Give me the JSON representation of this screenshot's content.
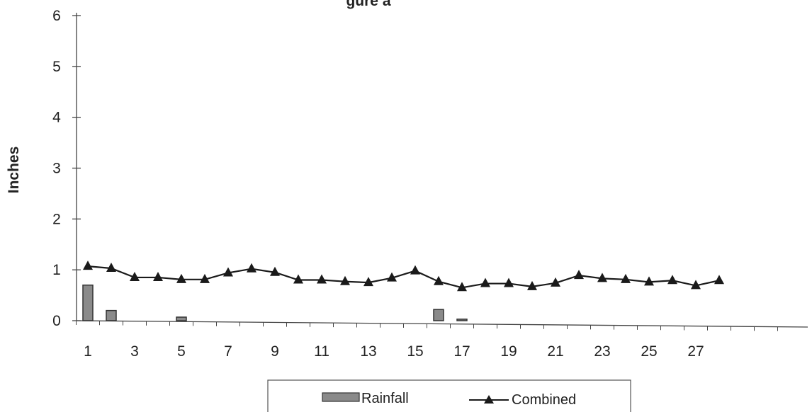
{
  "chart_data": {
    "type": "bar",
    "title": "gure a",
    "xlabel": "",
    "ylabel": "Inches",
    "ylim": [
      0,
      6
    ],
    "yticks": [
      0,
      1,
      2,
      3,
      4,
      5,
      6
    ],
    "x": [
      1,
      2,
      3,
      4,
      5,
      6,
      7,
      8,
      9,
      10,
      11,
      12,
      13,
      14,
      15,
      16,
      17,
      18,
      19,
      20,
      21,
      22,
      23,
      24,
      25,
      26,
      27,
      28
    ],
    "xtick_labels": [
      "1",
      "3",
      "5",
      "7",
      "9",
      "11",
      "13",
      "15",
      "17",
      "19",
      "21",
      "23",
      "25",
      "27"
    ],
    "series": [
      {
        "name": "Rainfall",
        "type": "bar",
        "color": "#8a8a8a",
        "values": [
          0.7,
          0.2,
          0,
          0,
          0.07,
          0,
          0,
          0,
          0,
          0,
          0,
          0,
          0,
          0,
          0,
          0.22,
          0.03,
          0,
          0,
          0,
          0,
          0,
          0,
          0,
          0,
          0,
          0,
          0
        ]
      },
      {
        "name": "Combined",
        "type": "line",
        "marker": "triangle",
        "color": "#1a1a1a",
        "values": [
          1.07,
          1.03,
          0.85,
          0.85,
          0.81,
          0.81,
          0.94,
          1.02,
          0.95,
          0.8,
          0.8,
          0.77,
          0.75,
          0.84,
          0.98,
          0.77,
          0.65,
          0.73,
          0.73,
          0.67,
          0.74,
          0.89,
          0.83,
          0.81,
          0.76,
          0.79,
          0.69,
          0.79
        ]
      }
    ],
    "legend": {
      "position": "bottom",
      "items": [
        "Rainfall",
        "Combined"
      ]
    },
    "grid": false
  }
}
